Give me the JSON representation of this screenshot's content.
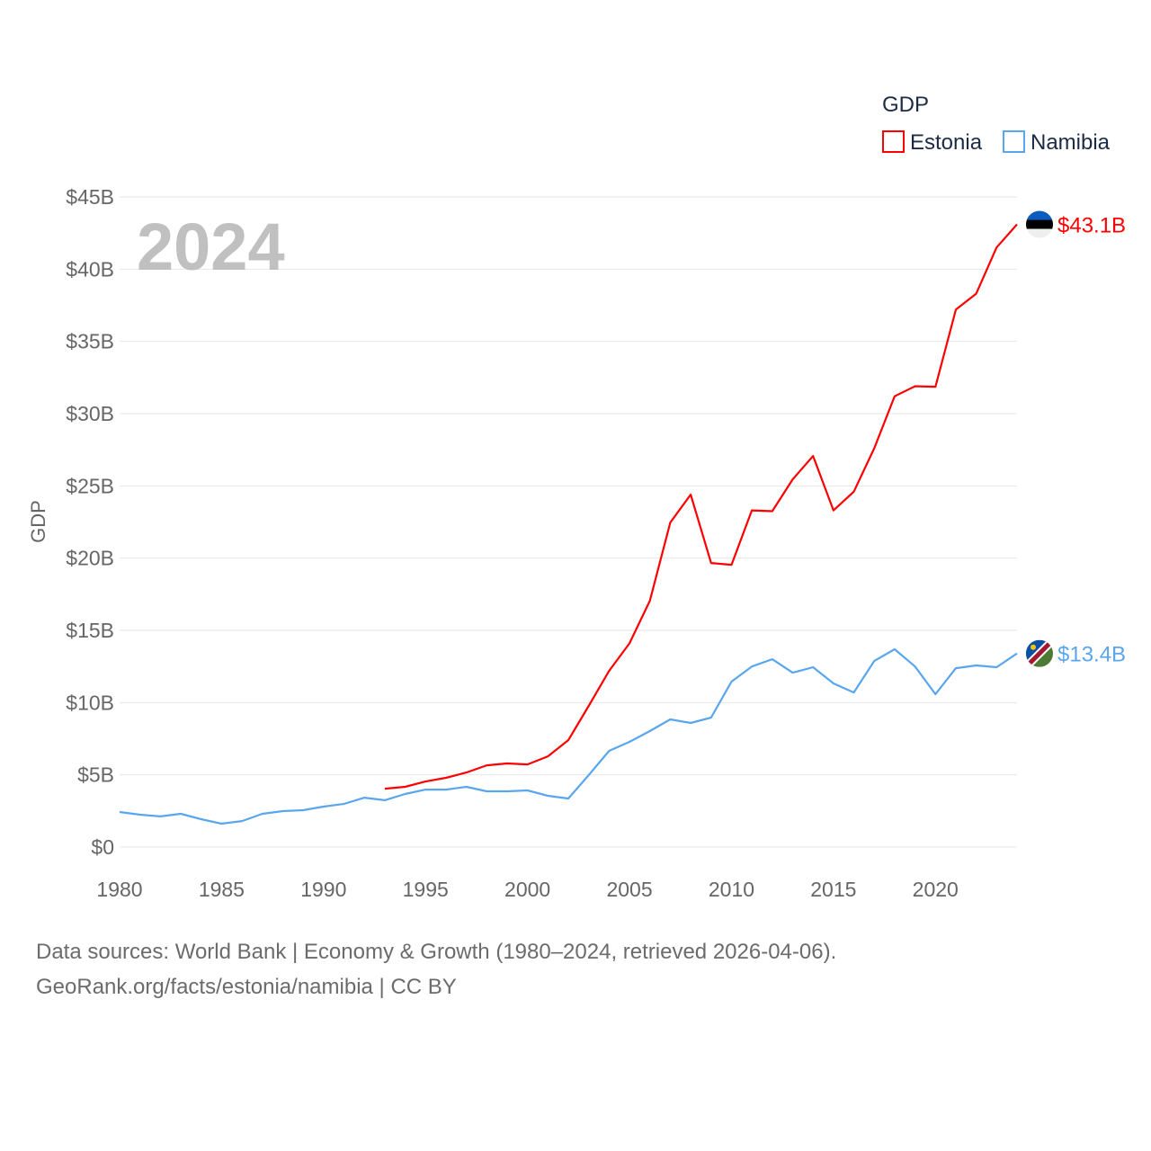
{
  "chart_data": {
    "type": "line",
    "title": "GDP",
    "year_label": "2024",
    "ylabel": "GDP",
    "xlabel": "",
    "xlim": [
      1980,
      2024
    ],
    "ylim": [
      0,
      45
    ],
    "grid": true,
    "legend_placement": "top-right",
    "x_ticks": [
      1980,
      1985,
      1990,
      1995,
      2000,
      2005,
      2010,
      2015,
      2020
    ],
    "y_ticks": [
      0,
      5,
      10,
      15,
      20,
      25,
      30,
      35,
      40,
      45
    ],
    "y_tick_labels": [
      "$0",
      "$5B",
      "$10B",
      "$15B",
      "$20B",
      "$25B",
      "$30B",
      "$35B",
      "$40B",
      "$45B"
    ],
    "series": [
      {
        "name": "Estonia",
        "color": "#ff0000",
        "end_label": "$43.1B",
        "flag": "estonia-flag",
        "x": [
          1993,
          1994,
          1995,
          1996,
          1997,
          1998,
          1999,
          2000,
          2001,
          2002,
          2003,
          2004,
          2005,
          2006,
          2007,
          2008,
          2009,
          2010,
          2011,
          2012,
          2013,
          2014,
          2015,
          2016,
          2017,
          2018,
          2019,
          2020,
          2021,
          2022,
          2023,
          2024
        ],
        "values": [
          4.04,
          4.17,
          4.54,
          4.79,
          5.16,
          5.66,
          5.79,
          5.72,
          6.28,
          7.4,
          9.77,
          12.2,
          14.1,
          17.05,
          22.46,
          24.4,
          19.66,
          19.54,
          23.3,
          23.25,
          25.45,
          27.07,
          23.3,
          24.6,
          27.6,
          31.2,
          31.9,
          31.86,
          37.2,
          38.3,
          41.5,
          43.1
        ]
      },
      {
        "name": "Namibia",
        "color": "#5aa6ee",
        "end_label": "$13.4B",
        "flag": "namibia-flag",
        "x": [
          1980,
          1981,
          1982,
          1983,
          1984,
          1985,
          1986,
          1987,
          1988,
          1989,
          1990,
          1991,
          1992,
          1993,
          1994,
          1995,
          1996,
          1997,
          1998,
          1999,
          2000,
          2001,
          2002,
          2003,
          2004,
          2005,
          2006,
          2007,
          2008,
          2009,
          2010,
          2011,
          2012,
          2013,
          2014,
          2015,
          2016,
          2017,
          2018,
          2019,
          2020,
          2021,
          2022,
          2023,
          2024
        ],
        "values": [
          2.43,
          2.24,
          2.12,
          2.3,
          1.93,
          1.62,
          1.8,
          2.3,
          2.49,
          2.55,
          2.8,
          2.99,
          3.42,
          3.24,
          3.67,
          3.98,
          3.98,
          4.17,
          3.86,
          3.86,
          3.92,
          3.55,
          3.36,
          4.98,
          6.66,
          7.28,
          8.03,
          8.84,
          8.59,
          8.96,
          11.45,
          12.5,
          13.0,
          12.07,
          12.45,
          11.33,
          10.7,
          12.88,
          13.69,
          12.5,
          10.58,
          12.38,
          12.57,
          12.45,
          13.4
        ]
      }
    ]
  },
  "footer": {
    "line1": "Data sources: World Bank | Economy & Growth (1980–2024, retrieved 2026-04-06).",
    "line2": "GeoRank.org/facts/estonia/namibia | CC BY"
  }
}
